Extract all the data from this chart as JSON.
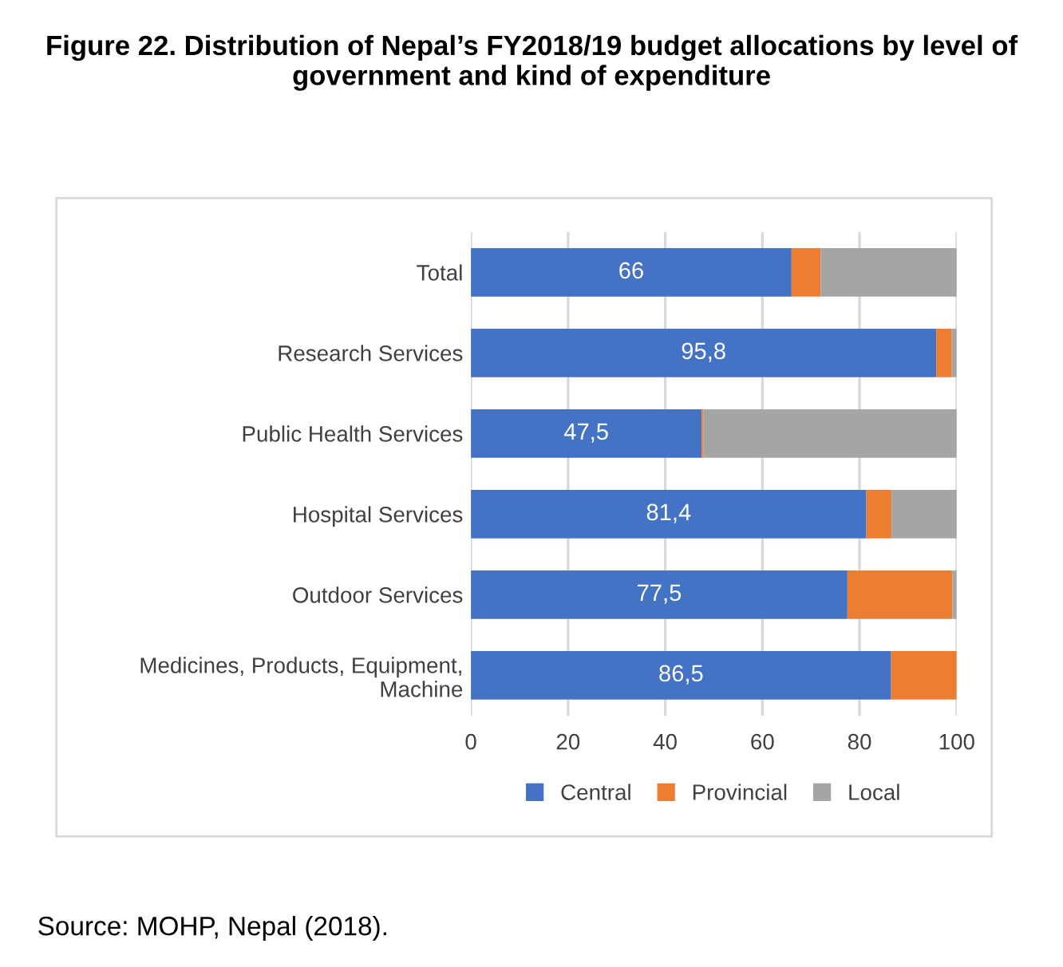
{
  "chart_data": {
    "type": "bar",
    "orientation": "horizontal",
    "stacked": true,
    "title": "Figure 22. Distribution of Nepal’s FY2018/19 budget allocations by level of government and kind of expenditure",
    "categories": [
      "Total",
      "Research Services",
      "Public Health Services",
      "Hospital Services",
      "Outdoor Services",
      "Medicines, Products, Equipment,\nMachine"
    ],
    "series": [
      {
        "name": "Central",
        "color": "#4472c4",
        "values": [
          66,
          95.8,
          47.5,
          81.4,
          77.5,
          86.5
        ],
        "value_labels": [
          "66",
          "95,8",
          "47,5",
          "81,4",
          "77,5",
          "86,5"
        ]
      },
      {
        "name": "Provincial",
        "color": "#ed7d31",
        "values": [
          6,
          3.2,
          0.4,
          5.2,
          21.6,
          13.5
        ]
      },
      {
        "name": "Local",
        "color": "#a5a5a5",
        "values": [
          28,
          1.0,
          52.1,
          13.4,
          0.9,
          0
        ]
      }
    ],
    "xlim": [
      0,
      100
    ],
    "xticks": [
      0,
      20,
      40,
      60,
      80,
      100
    ],
    "grid": "x",
    "legend": "bottom",
    "annotations": [
      "Source: MOHP, Nepal (2018)."
    ]
  }
}
